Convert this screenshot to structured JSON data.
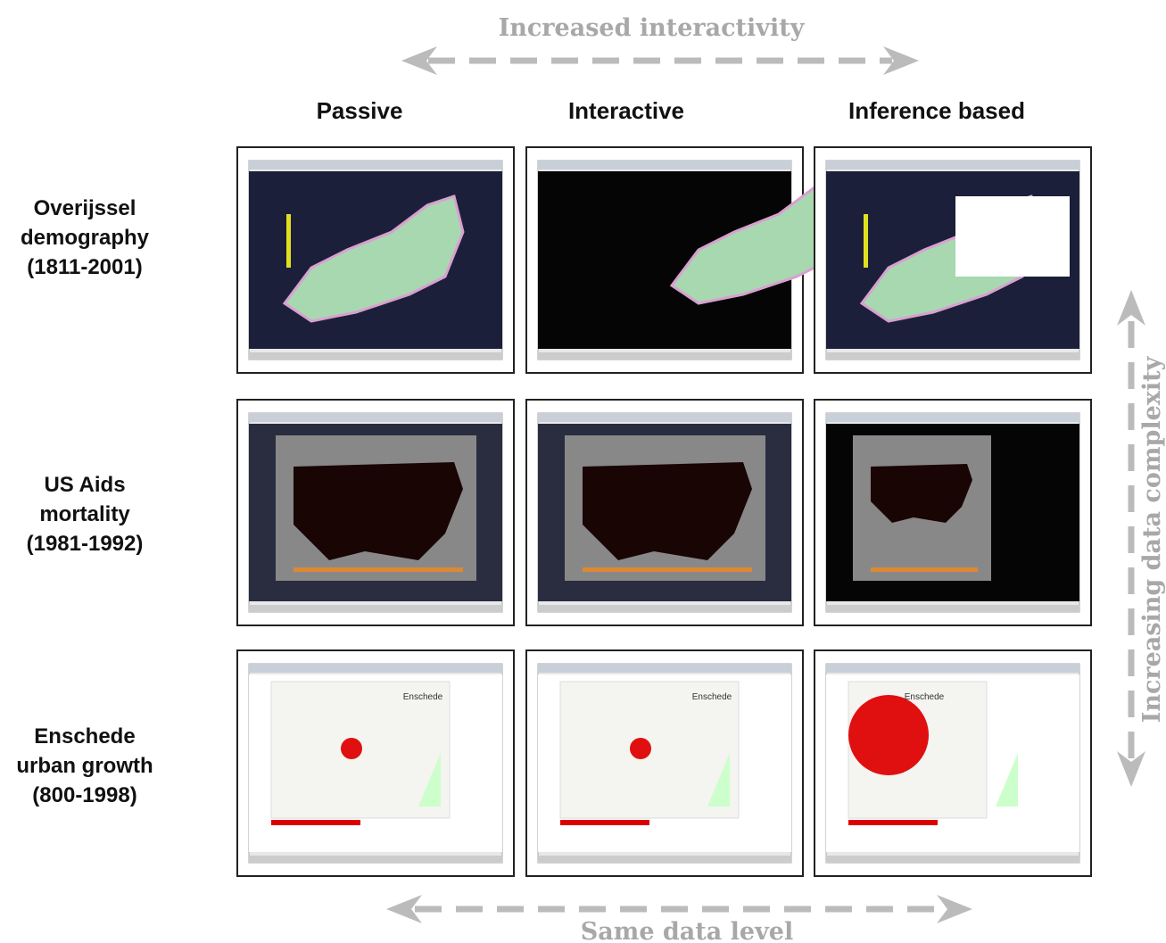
{
  "top_axis": {
    "label": "Increased interactivity"
  },
  "bottom_axis": {
    "label": "Same data level"
  },
  "side_axis": {
    "label": "Increasing data complexity"
  },
  "columns": [
    {
      "label": "Passive"
    },
    {
      "label": "Interactive"
    },
    {
      "label": "Inference based"
    }
  ],
  "rows": [
    {
      "label": [
        "Overijssel",
        "demography",
        "(1811-2001)"
      ]
    },
    {
      "label": [
        "US Aids",
        "mortality",
        "(1981-1992)"
      ]
    },
    {
      "label": [
        "Enschede",
        "urban growth",
        "(800-1998)"
      ],
      "thumb_labels": [
        "Enschede",
        "Enschede",
        "Enschede"
      ]
    }
  ]
}
